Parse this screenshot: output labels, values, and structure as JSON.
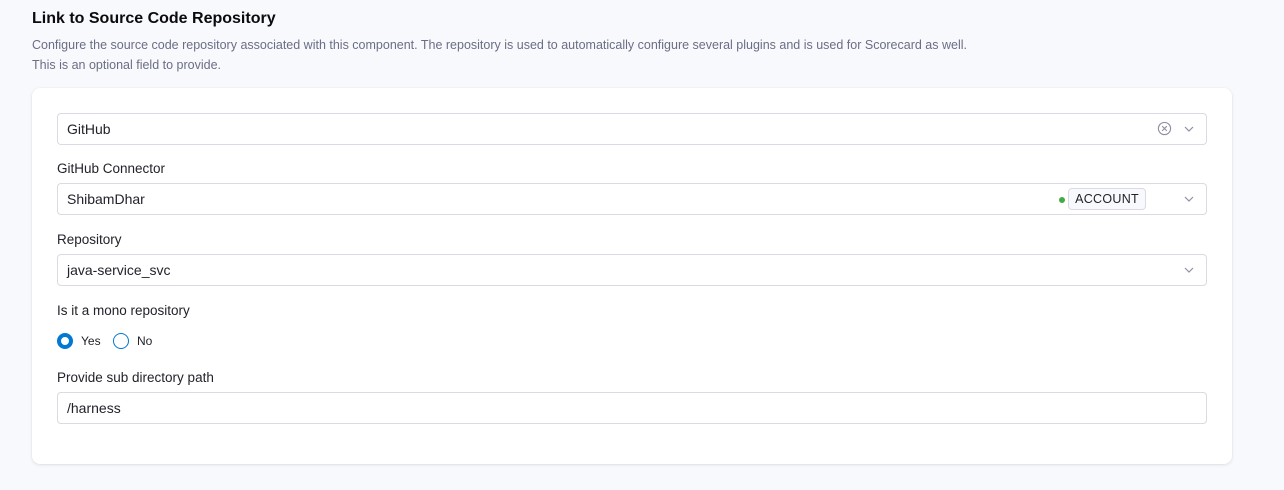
{
  "header": {
    "title": "Link to Source Code Repository",
    "description_line1": "Configure the source code repository associated with this component. The repository is used to automatically configure several plugins and is used for Scorecard as well.",
    "description_line2": "This is an optional field to provide."
  },
  "provider": {
    "value": "GitHub"
  },
  "connector": {
    "label": "GitHub Connector",
    "value": "ShibamDhar",
    "scope_badge": "ACCOUNT",
    "status_color": "#42ab45"
  },
  "repository": {
    "label": "Repository",
    "value": "java-service_svc"
  },
  "mono_repo": {
    "label": "Is it a mono repository",
    "options": [
      {
        "label": "Yes",
        "selected": true
      },
      {
        "label": "No",
        "selected": false
      }
    ]
  },
  "sub_directory": {
    "label": "Provide sub directory path",
    "value": "/harness"
  },
  "accent": "#0278d5"
}
